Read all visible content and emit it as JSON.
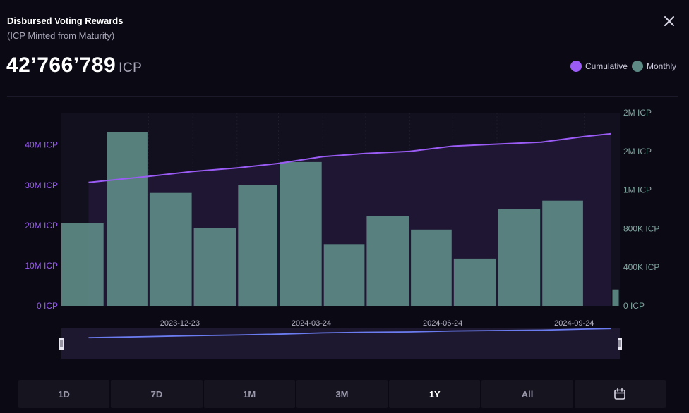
{
  "header": {
    "title": "Disbursed Voting Rewards",
    "subtitle": "(ICP Minted from Maturity)",
    "total_value": "42’766’789",
    "total_unit": "ICP"
  },
  "legend": [
    {
      "label": "Cumulative",
      "color": "#9a5cf5"
    },
    {
      "label": "Monthly",
      "color": "#5d8a84"
    }
  ],
  "icons": {
    "close": "close-icon",
    "calendar": "calendar-icon"
  },
  "range_buttons": [
    {
      "label": "1D",
      "active": false
    },
    {
      "label": "7D",
      "active": false
    },
    {
      "label": "1M",
      "active": false
    },
    {
      "label": "3M",
      "active": false
    },
    {
      "label": "1Y",
      "active": true
    },
    {
      "label": "All",
      "active": false
    }
  ],
  "chart_data": {
    "type": "bar",
    "left_axis": {
      "ticks": [
        0,
        10,
        20,
        30,
        40
      ],
      "tick_labels": [
        "0 ICP",
        "10M ICP",
        "20M ICP",
        "30M ICP",
        "40M ICP"
      ],
      "ylim_millions": [
        0,
        48
      ]
    },
    "right_axis": {
      "tick_labels": [
        "0 ICP",
        "400K ICP",
        "800K ICP",
        "1M ICP",
        "2M ICP",
        "2M ICP"
      ],
      "ticks_thousands": [
        0,
        400,
        800,
        1200,
        1600,
        2000
      ],
      "ylim_thousands": [
        0,
        2000
      ]
    },
    "x_tick_labels": [
      "2023-12-23",
      "2024-03-24",
      "2024-06-24",
      "2024-09-24"
    ],
    "series": [
      {
        "name": "Monthly",
        "color": "#5d8a84",
        "axis": "right",
        "unit": "thousand ICP",
        "months": [
          "2023-10",
          "2023-11",
          "2023-12",
          "2024-01",
          "2024-02",
          "2024-03",
          "2024-04",
          "2024-05",
          "2024-06",
          "2024-07",
          "2024-08",
          "2024-09",
          "2024-10"
        ],
        "values": [
          860,
          1800,
          1170,
          810,
          1250,
          1490,
          640,
          930,
          790,
          490,
          1000,
          1090,
          170
        ]
      },
      {
        "name": "Cumulative",
        "color": "#9a5cf5",
        "axis": "left",
        "unit": "million ICP",
        "dates": [
          "2023-10-20",
          "2023-12-01",
          "2024-01-01",
          "2024-02-01",
          "2024-03-01",
          "2024-04-01",
          "2024-05-01",
          "2024-06-01",
          "2024-07-01",
          "2024-08-01",
          "2024-09-01",
          "2024-10-01",
          "2024-10-20"
        ],
        "values": [
          30.7,
          32.2,
          33.4,
          34.3,
          35.4,
          37.1,
          37.9,
          38.4,
          39.7,
          40.2,
          40.7,
          42.1,
          42.8
        ]
      }
    ],
    "grid": false,
    "legend_position": "top-right"
  }
}
